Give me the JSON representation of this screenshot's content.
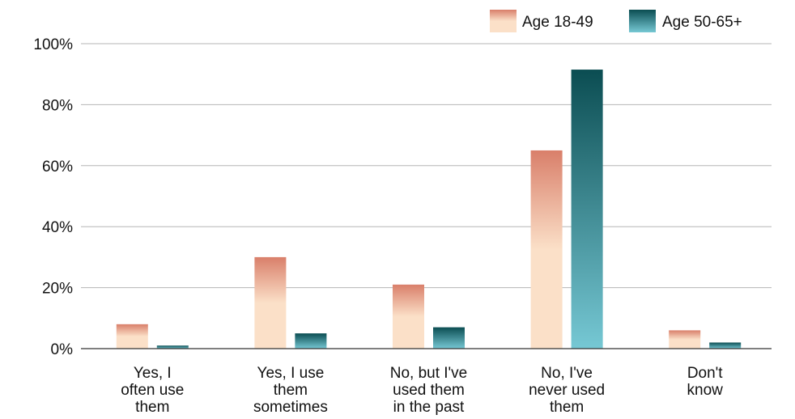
{
  "chart_data": {
    "type": "bar",
    "categories": [
      [
        "Yes, I",
        "often use",
        "them"
      ],
      [
        "Yes, I use",
        "them",
        "sometimes"
      ],
      [
        "No, but I've",
        "used them",
        "in the past"
      ],
      [
        "No, I've",
        "never used",
        "them"
      ],
      [
        "Don't",
        "know"
      ]
    ],
    "series": [
      {
        "name": "Age 18-49",
        "values": [
          8,
          30,
          21,
          65,
          6
        ]
      },
      {
        "name": "Age 50-65+",
        "values": [
          1,
          5,
          7,
          91.5,
          2
        ]
      }
    ],
    "ylim": [
      0,
      100
    ],
    "yticks": [
      "0%",
      "20%",
      "40%",
      "60%",
      "80%",
      "100%"
    ],
    "ytick_values": [
      0,
      20,
      40,
      60,
      80,
      100
    ],
    "grid": true,
    "legend": "top-right",
    "colors": {
      "series1_top": "#d97f6a",
      "series1_bottom": "#fbe0c8",
      "series2_top": "#0b4d52",
      "series2_bottom": "#76c8d4",
      "grid": "#b5b5b5",
      "axis": "#333333"
    }
  }
}
